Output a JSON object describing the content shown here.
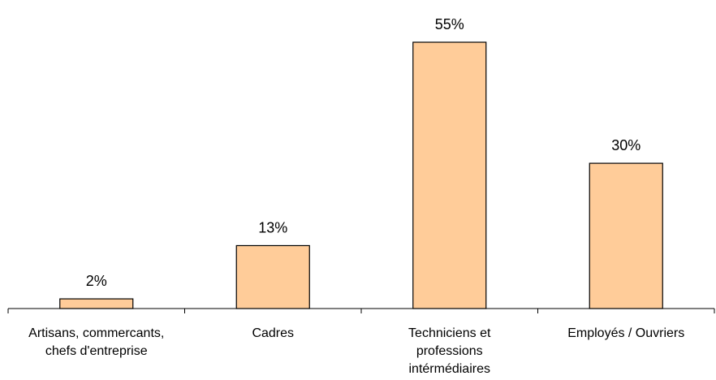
{
  "chart_data": {
    "type": "bar",
    "categories": [
      "Artisans, commercants,\nchefs d'entreprise",
      "Cadres",
      "Techniciens et\nprofessions\nintérmédiaires",
      "Employés / Ouvriers"
    ],
    "values": [
      2,
      13,
      55,
      30
    ],
    "data_labels": [
      "2%",
      "13%",
      "55%",
      "30%"
    ],
    "title": "",
    "xlabel": "",
    "ylabel": "",
    "ylim": [
      0,
      60
    ],
    "grid": false,
    "legend": "none",
    "bar_color": "#FFCC99",
    "bar_edge_color": "#000000"
  }
}
